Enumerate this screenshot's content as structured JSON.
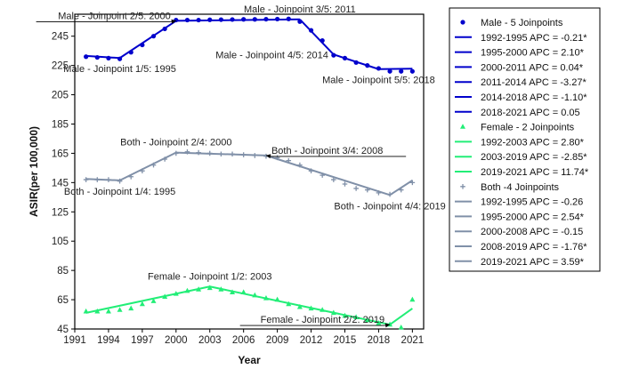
{
  "chart_data": {
    "type": "line",
    "xlabel": "Year",
    "ylabel": "ASIR(per 100,000)",
    "xlim": [
      1991,
      2022
    ],
    "ylim": [
      45,
      260
    ],
    "x_ticks": [
      1991,
      1994,
      1997,
      2000,
      2003,
      2006,
      2009,
      2012,
      2015,
      2018,
      2021
    ],
    "y_ticks": [
      45,
      65,
      85,
      105,
      125,
      145,
      165,
      185,
      205,
      225,
      245
    ],
    "grid": false,
    "legend_position": "right",
    "series": [
      {
        "name": "Male - 5 Joinpoints",
        "kind": "observed",
        "marker": "circle",
        "color": "#0000cc",
        "x": [
          1992,
          1993,
          1994,
          1995,
          1996,
          1997,
          1998,
          1999,
          2000,
          2001,
          2002,
          2003,
          2004,
          2005,
          2006,
          2007,
          2008,
          2009,
          2010,
          2011,
          2012,
          2013,
          2014,
          2015,
          2016,
          2017,
          2018,
          2019,
          2020,
          2021
        ],
        "y": [
          231,
          230.5,
          230,
          229.5,
          234,
          239,
          245,
          250,
          256,
          256,
          256,
          256.2,
          256.3,
          256.4,
          256.5,
          256.5,
          256.6,
          256.7,
          256.8,
          255,
          249,
          242,
          232,
          230,
          227,
          225,
          223,
          221,
          221,
          221
        ]
      },
      {
        "name": "Female - 2 Joinpoints",
        "kind": "observed",
        "marker": "triangle",
        "color": "#22ee77",
        "x": [
          1992,
          1993,
          1994,
          1995,
          1996,
          1997,
          1998,
          1999,
          2000,
          2001,
          2002,
          2003,
          2004,
          2005,
          2006,
          2007,
          2008,
          2009,
          2010,
          2011,
          2012,
          2013,
          2014,
          2015,
          2016,
          2017,
          2018,
          2019,
          2020,
          2021
        ],
        "y": [
          57,
          57,
          57,
          58,
          59,
          62,
          64,
          67,
          69,
          71,
          72,
          73,
          72,
          70,
          70,
          68,
          66,
          65,
          62,
          60,
          59,
          58,
          56,
          54,
          53,
          51,
          49,
          48,
          46,
          65
        ]
      },
      {
        "name": "Both -4 Joinpoints",
        "kind": "observed",
        "marker": "plus",
        "color": "#8090a8",
        "x": [
          1992,
          1993,
          1994,
          1995,
          1996,
          1997,
          1998,
          1999,
          2000,
          2001,
          2002,
          2003,
          2004,
          2005,
          2006,
          2007,
          2008,
          2009,
          2010,
          2011,
          2012,
          2013,
          2014,
          2015,
          2016,
          2017,
          2018,
          2019,
          2020,
          2021
        ],
        "y": [
          147,
          147,
          147,
          146,
          149,
          153,
          157,
          161,
          165,
          166,
          165.5,
          165,
          164.5,
          164.5,
          164,
          163.5,
          163,
          162,
          160,
          157,
          153,
          150,
          147,
          144,
          141,
          140,
          138,
          137,
          140,
          145
        ]
      },
      {
        "name": "1992-1995 APC = -0.21*",
        "kind": "fit",
        "color": "#0000cc",
        "x": [
          1992,
          1995
        ],
        "y": [
          231.5,
          230.1
        ]
      },
      {
        "name": "1995-2000 APC = 2.10*",
        "kind": "fit",
        "color": "#0000cc",
        "x": [
          1995,
          2000
        ],
        "y": [
          230.1,
          255.5
        ]
      },
      {
        "name": "2000-2011 APC = 0.04*",
        "kind": "fit",
        "color": "#0000cc",
        "x": [
          2000,
          2011
        ],
        "y": [
          255.5,
          256.5
        ]
      },
      {
        "name": "2011-2014 APC = -3.27*",
        "kind": "fit",
        "color": "#0000cc",
        "x": [
          2011,
          2014
        ],
        "y": [
          256.5,
          232.5
        ]
      },
      {
        "name": "2014-2018 APC = -1.10*",
        "kind": "fit",
        "color": "#0000cc",
        "x": [
          2014,
          2018
        ],
        "y": [
          232.5,
          222.5
        ]
      },
      {
        "name": "2018-2021 APC = 0.05",
        "kind": "fit",
        "color": "#0000cc",
        "x": [
          2018,
          2021
        ],
        "y": [
          222.5,
          222.8
        ]
      },
      {
        "name": "1992-2003 APC = 2.80*",
        "kind": "fit",
        "color": "#22ee77",
        "x": [
          1992,
          2003
        ],
        "y": [
          56,
          74
        ]
      },
      {
        "name": "2003-2019 APC = -2.85*",
        "kind": "fit",
        "color": "#22ee77",
        "x": [
          2003,
          2019
        ],
        "y": [
          74,
          48
        ]
      },
      {
        "name": "2019-2021 APC = 11.74*",
        "kind": "fit",
        "color": "#22ee77",
        "x": [
          2019,
          2021
        ],
        "y": [
          48,
          59
        ]
      },
      {
        "name": "1992-1995 APC = -0.26",
        "kind": "fit",
        "color": "#8090a8",
        "x": [
          1992,
          1995
        ],
        "y": [
          147.5,
          146.5
        ]
      },
      {
        "name": "1995-2000 APC = 2.54*",
        "kind": "fit",
        "color": "#8090a8",
        "x": [
          1995,
          2000
        ],
        "y": [
          146.5,
          165.5
        ]
      },
      {
        "name": "2000-2008 APC = -0.15",
        "kind": "fit",
        "color": "#8090a8",
        "x": [
          2000,
          2008
        ],
        "y": [
          165.5,
          163.5
        ]
      },
      {
        "name": "2008-2019 APC = -1.76*",
        "kind": "fit",
        "color": "#8090a8",
        "x": [
          2008,
          2019
        ],
        "y": [
          163.5,
          136.5
        ]
      },
      {
        "name": "2019-2021 APC = 3.59*",
        "kind": "fit",
        "color": "#8090a8",
        "x": [
          2019,
          2021
        ],
        "y": [
          136.5,
          146.5
        ]
      }
    ],
    "annotations": [
      {
        "text": "Male - Joinpoint 2/5:  2000",
        "x": 2000,
        "y": 255.5,
        "side": "left",
        "arrow": true
      },
      {
        "text": "Male - Joinpoint 3/5:  2011",
        "x": 2011,
        "y": 256.5,
        "side": "above"
      },
      {
        "text": "Male - Joinpoint 1/5:  1995",
        "x": 1995,
        "y": 230.1,
        "side": "below"
      },
      {
        "text": "Male - Joinpoint 4/5:  2014",
        "x": 2014,
        "y": 232.5,
        "side": "left"
      },
      {
        "text": "Male - Joinpoint 5/5:  2018",
        "x": 2018,
        "y": 222.5,
        "side": "below"
      },
      {
        "text": "Both - Joinpoint 2/4:  2000",
        "x": 2000,
        "y": 165.5,
        "side": "above"
      },
      {
        "text": "Both - Joinpoint 3/4:  2008",
        "x": 2008,
        "y": 163.5,
        "side": "right",
        "arrow": true
      },
      {
        "text": "Both - Joinpoint 1/4:  1995",
        "x": 1995,
        "y": 146.5,
        "side": "below"
      },
      {
        "text": "Both - Joinpoint 4/4:  2019",
        "x": 2019,
        "y": 136.5,
        "side": "below"
      },
      {
        "text": "Female - Joinpoint 1/2:  2003",
        "x": 2003,
        "y": 74,
        "side": "above"
      },
      {
        "text": "Female - Joinpoint 2/2:  2019",
        "x": 2019,
        "y": 48,
        "side": "left",
        "arrow": true
      }
    ],
    "legend": [
      {
        "label": "Male - 5 Joinpoints",
        "symbol": "circle",
        "color": "#0000cc"
      },
      {
        "label": "1992-1995 APC  =  -0.21*",
        "symbol": "line",
        "color": "#0000cc"
      },
      {
        "label": "1995-2000 APC  =  2.10*",
        "symbol": "line",
        "color": "#0000cc"
      },
      {
        "label": "2000-2011 APC  =  0.04*",
        "symbol": "line",
        "color": "#0000cc"
      },
      {
        "label": "2011-2014 APC  =  -3.27*",
        "symbol": "line",
        "color": "#0000cc"
      },
      {
        "label": "2014-2018 APC  =  -1.10*",
        "symbol": "line",
        "color": "#0000cc"
      },
      {
        "label": "2018-2021 APC  =  0.05",
        "symbol": "line",
        "color": "#0000cc"
      },
      {
        "label": "Female - 2 Joinpoints",
        "symbol": "triangle",
        "color": "#22ee77"
      },
      {
        "label": "1992-2003 APC  =  2.80*",
        "symbol": "line",
        "color": "#22ee77"
      },
      {
        "label": "2003-2019 APC  =  -2.85*",
        "symbol": "line",
        "color": "#22ee77"
      },
      {
        "label": "2019-2021 APC  =  11.74*",
        "symbol": "line",
        "color": "#22ee77"
      },
      {
        "label": "Both -4 Joinpoints",
        "symbol": "plus",
        "color": "#8090a8"
      },
      {
        "label": "1992-1995 APC  =  -0.26",
        "symbol": "line",
        "color": "#8090a8"
      },
      {
        "label": "1995-2000 APC  =  2.54*",
        "symbol": "line",
        "color": "#8090a8"
      },
      {
        "label": "2000-2008 APC  =  -0.15",
        "symbol": "line",
        "color": "#8090a8"
      },
      {
        "label": "2008-2019 APC  =  -1.76*",
        "symbol": "line",
        "color": "#8090a8"
      },
      {
        "label": "2019-2021 APC  =  3.59*",
        "symbol": "line",
        "color": "#8090a8"
      }
    ]
  }
}
